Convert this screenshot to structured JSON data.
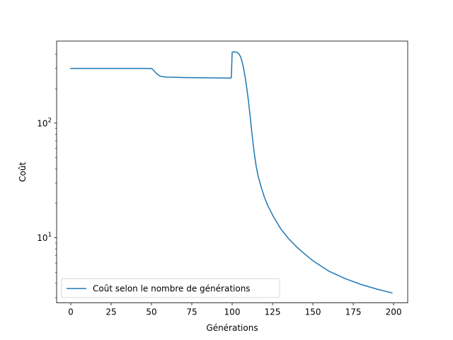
{
  "chart_data": {
    "type": "line",
    "title": "",
    "xlabel": "Générations",
    "ylabel": "Coût",
    "xlim": [
      -8.75,
      208.75
    ],
    "ylim": [
      2.7,
      520
    ],
    "yscale": "log",
    "grid": false,
    "legend_position": "lower-left",
    "x_ticks": [
      0,
      25,
      50,
      75,
      100,
      125,
      150,
      175,
      200
    ],
    "x_tick_labels": [
      "0",
      "25",
      "50",
      "75",
      "100",
      "125",
      "150",
      "175",
      "200"
    ],
    "y_major_ticks": [
      {
        "value": 10,
        "base": "10",
        "exp": "1"
      },
      {
        "value": 100,
        "base": "10",
        "exp": "2"
      }
    ],
    "y_minor_ticks": [
      3,
      4,
      5,
      6,
      7,
      8,
      9,
      20,
      30,
      40,
      50,
      60,
      70,
      80,
      90,
      200,
      300,
      400
    ],
    "series": [
      {
        "name": "Coût selon le nombre de générations",
        "color": "#1f77b4",
        "x": [
          0,
          10,
          20,
          30,
          40,
          50,
          51,
          52,
          53,
          54,
          55,
          56,
          58,
          60,
          65,
          70,
          80,
          90,
          99,
          99.5,
          100,
          100.5,
          101,
          102,
          103,
          104,
          105,
          106,
          107,
          108,
          109,
          110,
          111,
          112,
          113,
          114,
          115,
          116,
          118,
          120,
          122,
          125,
          130,
          135,
          140,
          145,
          150,
          160,
          170,
          180,
          190,
          199
        ],
        "y": [
          300,
          300,
          300,
          300,
          300,
          300,
          293,
          282,
          272,
          265,
          259,
          256,
          253,
          252,
          251,
          250,
          249,
          248,
          247,
          250,
          415,
          418,
          419,
          418,
          414,
          405,
          385,
          350,
          305,
          255,
          205,
          160,
          120,
          88,
          66,
          51,
          41,
          35,
          27.5,
          22.5,
          19.2,
          15.8,
          12,
          9.8,
          8.3,
          7.2,
          6.3,
          5.1,
          4.4,
          3.9,
          3.55,
          3.3
        ]
      }
    ]
  }
}
